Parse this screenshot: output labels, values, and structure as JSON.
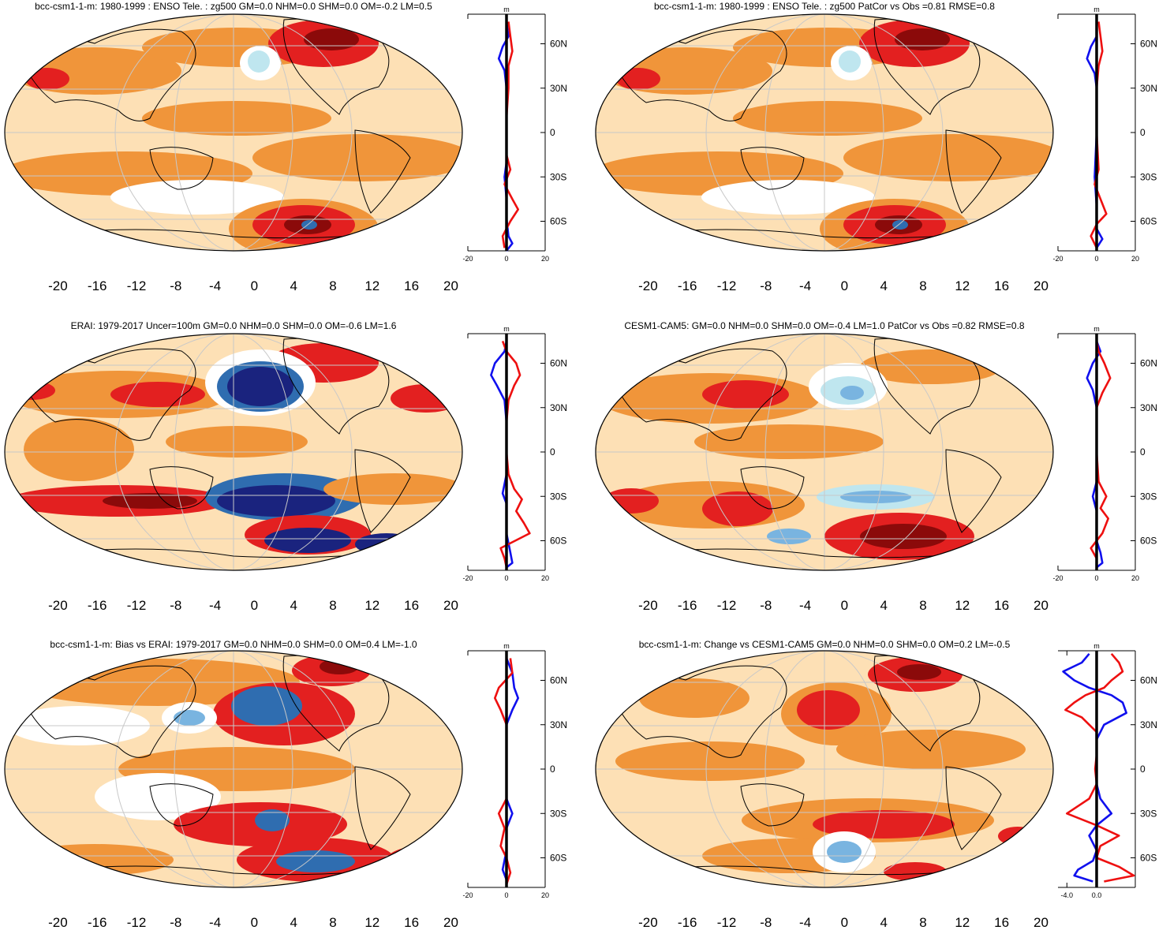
{
  "colors": {
    "neg_strong": "#1a237e",
    "neg": "#2f6db0",
    "neg_mid": "#79b4e0",
    "neg_light": "#bfe6ef",
    "pos_light": "#fde0b5",
    "pos_mid": "#f0953a",
    "pos": "#e32020",
    "pos_strong": "#8b0a0a",
    "profile_blue": "#1010ee",
    "profile_red": "#ee1010",
    "land": "#000000"
  },
  "panels": [
    {
      "id": "bcc-model",
      "title": "bcc-csm1-1-m: 1980-1999 : ENSO Tele. : zg500 GM=0.0 NHM=0.0 SHM=0.0 OM=-0.2 LM=0.5",
      "colorbar_ticks": [
        "-20",
        "-16",
        "-12",
        "-8",
        "-4",
        "0",
        "4",
        "8",
        "12",
        "16",
        "20"
      ],
      "profile": {
        "unit": "m",
        "lat_labels": [
          "60N",
          "30N",
          "0",
          "30S",
          "60S"
        ],
        "x_ticks": [
          "-20",
          "0",
          "20"
        ],
        "xlim": [
          -20,
          20
        ],
        "blue": [
          [
            75,
            0
          ],
          [
            65,
            1
          ],
          [
            58,
            -2
          ],
          [
            50,
            -4
          ],
          [
            42,
            -1
          ],
          [
            30,
            0
          ],
          [
            10,
            0
          ],
          [
            -20,
            0
          ],
          [
            -30,
            -1
          ],
          [
            -45,
            0
          ],
          [
            -58,
            0
          ],
          [
            -70,
            1
          ],
          [
            -75,
            3
          ],
          [
            -80,
            0
          ]
        ],
        "red": [
          [
            75,
            1
          ],
          [
            65,
            2
          ],
          [
            55,
            3
          ],
          [
            45,
            1
          ],
          [
            30,
            1
          ],
          [
            10,
            0
          ],
          [
            -15,
            0
          ],
          [
            -25,
            2
          ],
          [
            -35,
            -1
          ],
          [
            -45,
            3
          ],
          [
            -52,
            6
          ],
          [
            -60,
            2
          ],
          [
            -70,
            -2
          ],
          [
            -78,
            -1
          ]
        ]
      }
    },
    {
      "id": "bcc-model-vs-obs",
      "title": "bcc-csm1-1-m: 1980-1999 : ENSO Tele. : zg500 PatCor vs Obs =0.81 RMSE=0.8",
      "colorbar_ticks": [
        "-20",
        "-16",
        "-12",
        "-8",
        "-4",
        "0",
        "4",
        "8",
        "12",
        "16",
        "20"
      ],
      "profile": {
        "unit": "m",
        "lat_labels": [
          "60N",
          "30N",
          "0",
          "30S",
          "60S"
        ],
        "x_ticks": [
          "-20",
          "0",
          "20"
        ],
        "xlim": [
          -20,
          20
        ],
        "blue": [
          [
            75,
            0
          ],
          [
            65,
            0
          ],
          [
            58,
            -3
          ],
          [
            50,
            -5
          ],
          [
            40,
            -1
          ],
          [
            30,
            0
          ],
          [
            0,
            0
          ],
          [
            -30,
            -1
          ],
          [
            -50,
            0
          ],
          [
            -65,
            0
          ],
          [
            -72,
            3
          ],
          [
            -78,
            0
          ]
        ],
        "red": [
          [
            75,
            1
          ],
          [
            65,
            2
          ],
          [
            55,
            3
          ],
          [
            45,
            1
          ],
          [
            30,
            0
          ],
          [
            0,
            0
          ],
          [
            -25,
            1
          ],
          [
            -35,
            -1
          ],
          [
            -45,
            2
          ],
          [
            -55,
            5
          ],
          [
            -62,
            0
          ],
          [
            -70,
            -3
          ],
          [
            -78,
            0
          ]
        ]
      }
    },
    {
      "id": "erai-obs",
      "title": "ERAI: 1979-2017 Uncer=100m GM=0.0 NHM=0.0 SHM=0.0 OM=-0.6 LM=1.6",
      "colorbar_ticks": [
        "-20",
        "-16",
        "-12",
        "-8",
        "-4",
        "0",
        "4",
        "8",
        "12",
        "16",
        "20"
      ],
      "profile": {
        "unit": "m",
        "lat_labels": [
          "60N",
          "30N",
          "0",
          "30S",
          "60S"
        ],
        "x_ticks": [
          "-20",
          "0",
          "20"
        ],
        "xlim": [
          -20,
          20
        ],
        "blue": [
          [
            75,
            0
          ],
          [
            68,
            -1
          ],
          [
            60,
            -6
          ],
          [
            52,
            -8
          ],
          [
            45,
            -5
          ],
          [
            35,
            -1
          ],
          [
            20,
            0
          ],
          [
            0,
            0
          ],
          [
            -15,
            0
          ],
          [
            -28,
            -2
          ],
          [
            -35,
            0
          ],
          [
            -55,
            0
          ],
          [
            -68,
            2
          ],
          [
            -75,
            3
          ],
          [
            -78,
            0
          ]
        ],
        "red": [
          [
            75,
            -2
          ],
          [
            68,
            0
          ],
          [
            60,
            5
          ],
          [
            52,
            7
          ],
          [
            45,
            4
          ],
          [
            35,
            1
          ],
          [
            20,
            0
          ],
          [
            0,
            0
          ],
          [
            -15,
            1
          ],
          [
            -25,
            4
          ],
          [
            -32,
            8
          ],
          [
            -40,
            5
          ],
          [
            -48,
            9
          ],
          [
            -55,
            12
          ],
          [
            -65,
            -3
          ],
          [
            -72,
            -1
          ],
          [
            -78,
            0
          ]
        ]
      }
    },
    {
      "id": "cesm-model",
      "title": "CESM1-CAM5: GM=0.0 NHM=0.0 SHM=0.0 OM=-0.4 LM=1.0 PatCor vs Obs =0.82 RMSE=0.8",
      "colorbar_ticks": [
        "-20",
        "-16",
        "-12",
        "-8",
        "-4",
        "0",
        "4",
        "8",
        "12",
        "16",
        "20"
      ],
      "profile": {
        "unit": "m",
        "lat_labels": [
          "60N",
          "30N",
          "0",
          "30S",
          "60S"
        ],
        "x_ticks": [
          "-20",
          "0",
          "20"
        ],
        "xlim": [
          -20,
          20
        ],
        "blue": [
          [
            75,
            0
          ],
          [
            68,
            2
          ],
          [
            60,
            -2
          ],
          [
            50,
            -5
          ],
          [
            42,
            -2
          ],
          [
            30,
            0
          ],
          [
            0,
            0
          ],
          [
            -20,
            0
          ],
          [
            -30,
            -2
          ],
          [
            -40,
            0
          ],
          [
            -60,
            0
          ],
          [
            -68,
            2
          ],
          [
            -75,
            3
          ],
          [
            -78,
            0
          ]
        ],
        "red": [
          [
            75,
            0
          ],
          [
            68,
            1
          ],
          [
            60,
            4
          ],
          [
            50,
            7
          ],
          [
            40,
            3
          ],
          [
            30,
            0
          ],
          [
            0,
            0
          ],
          [
            -20,
            1
          ],
          [
            -30,
            5
          ],
          [
            -38,
            2
          ],
          [
            -45,
            6
          ],
          [
            -55,
            3
          ],
          [
            -65,
            -3
          ],
          [
            -72,
            0
          ],
          [
            -78,
            0
          ]
        ]
      }
    },
    {
      "id": "bias-vs-erai",
      "title": "bcc-csm1-1-m: Bias vs ERAI: 1979-2017 GM=0.0 NHM=0.0 SHM=0.0 OM=0.4 LM=-1.0",
      "colorbar_ticks": [
        "-20",
        "-16",
        "-12",
        "-8",
        "-4",
        "0",
        "4",
        "8",
        "12",
        "16",
        "20"
      ],
      "profile": {
        "unit": "m",
        "lat_labels": [
          "60N",
          "30N",
          "0",
          "30S",
          "60S"
        ],
        "x_ticks": [
          "-20",
          "0",
          "20"
        ],
        "xlim": [
          -20,
          20
        ],
        "blue": [
          [
            75,
            0
          ],
          [
            65,
            3
          ],
          [
            55,
            4
          ],
          [
            48,
            6
          ],
          [
            40,
            3
          ],
          [
            30,
            0
          ],
          [
            0,
            0
          ],
          [
            -20,
            0
          ],
          [
            -30,
            3
          ],
          [
            -40,
            0
          ],
          [
            -55,
            0
          ],
          [
            -68,
            -2
          ],
          [
            -75,
            0
          ],
          [
            -78,
            0
          ]
        ],
        "red": [
          [
            75,
            2
          ],
          [
            65,
            3
          ],
          [
            55,
            -4
          ],
          [
            48,
            -6
          ],
          [
            40,
            -3
          ],
          [
            30,
            0
          ],
          [
            0,
            0
          ],
          [
            -20,
            0
          ],
          [
            -30,
            -4
          ],
          [
            -40,
            -1
          ],
          [
            -52,
            -3
          ],
          [
            -60,
            0
          ],
          [
            -70,
            2
          ],
          [
            -78,
            0
          ]
        ]
      }
    },
    {
      "id": "change-vs-cesm",
      "title": "bcc-csm1-1-m: Change vs CESM1-CAM5 GM=0.0 NHM=0.0 SHM=0.0 OM=0.2 LM=-0.5",
      "colorbar_ticks": [
        "-20",
        "-16",
        "-12",
        "-8",
        "-4",
        "0",
        "4",
        "8",
        "12",
        "16",
        "20"
      ],
      "profile": {
        "unit": "m",
        "lat_labels": [
          "60N",
          "30N",
          "0",
          "30S",
          "60S"
        ],
        "x_ticks": [
          "-4.0",
          "0.0"
        ],
        "xlim": [
          -5.2,
          5.2
        ],
        "blue": [
          [
            78,
            -1
          ],
          [
            72,
            -2
          ],
          [
            66,
            -4.5
          ],
          [
            60,
            -3
          ],
          [
            55,
            -1
          ],
          [
            50,
            2
          ],
          [
            45,
            3.5
          ],
          [
            38,
            4
          ],
          [
            30,
            1
          ],
          [
            20,
            0
          ],
          [
            10,
            0
          ],
          [
            0,
            0
          ],
          [
            -10,
            0
          ],
          [
            -20,
            0.5
          ],
          [
            -30,
            2
          ],
          [
            -38,
            0
          ],
          [
            -45,
            -1
          ],
          [
            -55,
            0
          ],
          [
            -62,
            -0.5
          ],
          [
            -68,
            -2.5
          ],
          [
            -72,
            -3
          ],
          [
            -76,
            -0.5
          ]
        ],
        "red": [
          [
            78,
            2
          ],
          [
            72,
            3
          ],
          [
            66,
            3.5
          ],
          [
            60,
            2
          ],
          [
            55,
            1
          ],
          [
            50,
            -1.5
          ],
          [
            45,
            -3
          ],
          [
            40,
            -4.2
          ],
          [
            35,
            -2
          ],
          [
            25,
            0
          ],
          [
            10,
            0
          ],
          [
            0,
            -0.2
          ],
          [
            -10,
            0
          ],
          [
            -20,
            -1
          ],
          [
            -30,
            -4
          ],
          [
            -38,
            0
          ],
          [
            -45,
            3
          ],
          [
            -52,
            0.5
          ],
          [
            -60,
            0
          ],
          [
            -66,
            3
          ],
          [
            -72,
            5
          ],
          [
            -76,
            1
          ]
        ]
      }
    }
  ]
}
